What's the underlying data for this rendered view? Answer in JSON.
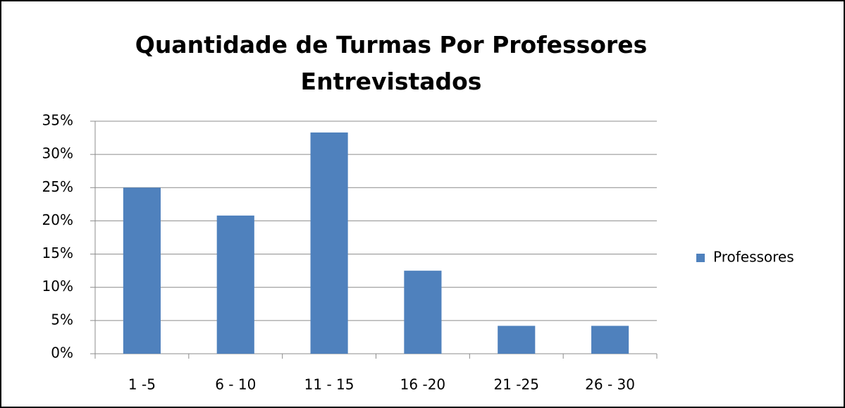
{
  "chart_data": {
    "type": "bar",
    "title": "Quantidade de Turmas Por Professores Entrevistados",
    "categories": [
      "1 -5",
      "6 - 10",
      "11 - 15",
      "16 -20",
      "21 -25",
      "26 - 30"
    ],
    "series": [
      {
        "name": "Professores",
        "color": "#4f81bd",
        "values": [
          25,
          20.8,
          33.3,
          12.5,
          4.2,
          4.2
        ]
      }
    ],
    "ylim": [
      0,
      35
    ],
    "yticks": [
      {
        "value": 0,
        "label": "0%"
      },
      {
        "value": 5,
        "label": "5%"
      },
      {
        "value": 10,
        "label": "10%"
      },
      {
        "value": 15,
        "label": "15%"
      },
      {
        "value": 20,
        "label": "20%"
      },
      {
        "value": 25,
        "label": "25%"
      },
      {
        "value": 30,
        "label": "30%"
      },
      {
        "value": 35,
        "label": "35%"
      }
    ],
    "grid": true,
    "legend": "right"
  }
}
